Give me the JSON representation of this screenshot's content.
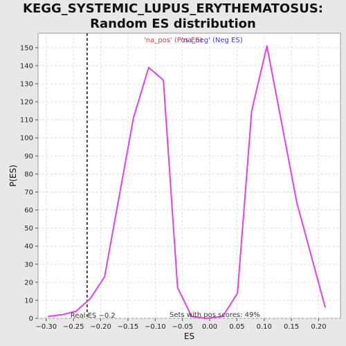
{
  "chart_data": {
    "type": "line",
    "title": "KEGG_SYSTEMIC_LUPUS_ERYTHEMATOSUS: Random ES distribution",
    "xlabel": "ES",
    "ylabel": "P(ES)",
    "xlim": [
      -0.315,
      0.24
    ],
    "ylim": [
      0,
      158
    ],
    "xticks": [
      -0.3,
      -0.25,
      -0.2,
      -0.15,
      -0.1,
      -0.05,
      0.0,
      0.05,
      0.1,
      0.15,
      0.2
    ],
    "xtick_labels": [
      "−0.30",
      "−0.25",
      "−0.20",
      "−0.15",
      "−0.10",
      "−0.05",
      "0.00",
      "0.05",
      "0.10",
      "0.15",
      "0.20"
    ],
    "yticks": [
      0,
      10,
      20,
      30,
      40,
      50,
      60,
      70,
      80,
      90,
      100,
      110,
      120,
      130,
      140,
      150
    ],
    "grid": true,
    "legend": {
      "pos_label": "'na_pos' (Pos ES)",
      "neg_label": "'na_neg' (Neg ES)",
      "pos_color": "#e03c3c",
      "neg_color": "#3c3ce0",
      "placement": "top-center"
    },
    "series": [
      {
        "color": "#e83ee8",
        "x": [
          -0.297,
          -0.271,
          -0.245,
          -0.219,
          -0.193,
          -0.14,
          -0.112,
          -0.085,
          -0.059,
          -0.033,
          -0.007,
          0.024,
          0.051,
          0.077,
          0.105,
          0.16,
          0.212
        ],
        "values": [
          1,
          2,
          4,
          11,
          23,
          111,
          139,
          132,
          17,
          1,
          0,
          1,
          14,
          115,
          151,
          64,
          6
        ]
      }
    ],
    "real_es": {
      "x": -0.225,
      "label": "Real ES −0.2",
      "color": "#444444"
    },
    "pos_scores_text": "Sets with pos scores: 49%"
  }
}
